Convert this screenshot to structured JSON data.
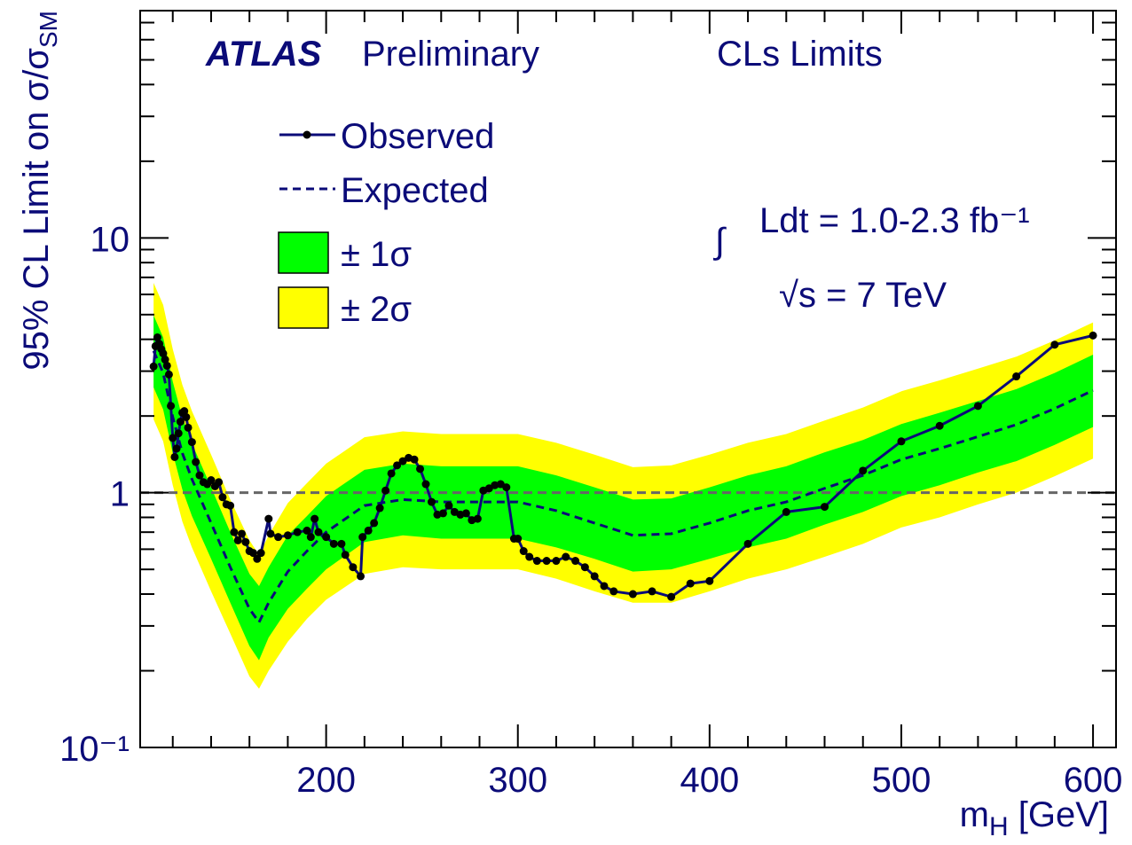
{
  "chart_data": {
    "type": "line",
    "atlas_label": "ATLAS",
    "status": "Preliminary",
    "method": "CLs Limits",
    "integral_sign": "∫",
    "luminosity": "Ldt = 1.0-2.3 fb⁻¹",
    "energy": "√s = 7 TeV",
    "x_label": [
      "m",
      "H",
      " [GeV]"
    ],
    "y_label": [
      "95% CL Limit on σ/σ",
      "SM"
    ],
    "xlim": [
      103,
      612
    ],
    "xticks": [
      200,
      300,
      400,
      500,
      600
    ],
    "xminorticks": [
      120,
      140,
      160,
      180,
      220,
      240,
      260,
      280,
      320,
      340,
      360,
      380,
      420,
      440,
      460,
      480,
      520,
      540,
      560,
      580
    ],
    "ylim": [
      0.1,
      78
    ],
    "yscale": "log",
    "yticks": [
      {
        "value": 0.1,
        "label": "10⁻¹"
      },
      1,
      10
    ],
    "yminorticks": [
      0.2,
      0.3,
      0.4,
      0.5,
      0.6,
      0.7,
      0.8,
      0.9,
      2,
      3,
      4,
      5,
      6,
      7,
      8,
      9,
      20,
      30,
      40,
      50,
      60,
      70
    ],
    "reference_line": {
      "value": 1,
      "color": "#666666"
    },
    "series": [
      {
        "name": "Observed",
        "color": "#0b0b78",
        "marker_color": "#000000",
        "style": "solid",
        "x": [
          110,
          111,
          112,
          113,
          114,
          115,
          116,
          117,
          118,
          119,
          120,
          121,
          122,
          123,
          124,
          125,
          126,
          127,
          128,
          130,
          132,
          134,
          136,
          138,
          140,
          142,
          144,
          146,
          148,
          150,
          152,
          154,
          156,
          158,
          160,
          162,
          164,
          166,
          170,
          171,
          175,
          180,
          185,
          190,
          192,
          194,
          196,
          200,
          204,
          208,
          210,
          214,
          218,
          219,
          222,
          225,
          228,
          231,
          234,
          237,
          240,
          243,
          246,
          249,
          252,
          255,
          258,
          261,
          264,
          267,
          270,
          273,
          276,
          279,
          282,
          285,
          288,
          291,
          294,
          298,
          300,
          303,
          306,
          310,
          315,
          320,
          325,
          330,
          335,
          340,
          345,
          350,
          360,
          370,
          380,
          390,
          400,
          420,
          440,
          460,
          480,
          500,
          520,
          540,
          560,
          580,
          600
        ],
        "values": [
          3.13,
          3.76,
          4.07,
          3.84,
          3.66,
          3.52,
          3.33,
          3.15,
          2.91,
          2.19,
          1.64,
          1.38,
          1.49,
          1.71,
          1.9,
          2.06,
          2.09,
          1.98,
          1.8,
          1.58,
          1.32,
          1.17,
          1.1,
          1.08,
          1.12,
          1.06,
          1.1,
          0.96,
          0.9,
          0.89,
          0.7,
          0.65,
          0.69,
          0.64,
          0.59,
          0.58,
          0.55,
          0.58,
          0.79,
          0.69,
          0.67,
          0.68,
          0.7,
          0.71,
          0.67,
          0.79,
          0.7,
          0.67,
          0.63,
          0.63,
          0.57,
          0.51,
          0.47,
          0.67,
          0.71,
          0.76,
          0.87,
          1.02,
          1.19,
          1.28,
          1.33,
          1.37,
          1.35,
          1.24,
          1.08,
          0.92,
          0.82,
          0.83,
          0.89,
          0.84,
          0.82,
          0.83,
          0.78,
          0.79,
          1.02,
          1.04,
          1.07,
          1.08,
          1.05,
          0.66,
          0.66,
          0.59,
          0.56,
          0.54,
          0.54,
          0.54,
          0.56,
          0.54,
          0.51,
          0.47,
          0.43,
          0.41,
          0.4,
          0.41,
          0.39,
          0.44,
          0.45,
          0.63,
          0.84,
          0.88,
          1.22,
          1.59,
          1.83,
          2.19,
          2.86,
          3.81,
          4.14
        ]
      },
      {
        "name": "Expected",
        "color": "#0b0b78",
        "style": "dashed",
        "x": [
          110,
          115,
          120,
          125,
          130,
          140,
          150,
          160,
          165,
          170,
          180,
          190,
          200,
          220,
          240,
          260,
          280,
          300,
          320,
          340,
          360,
          380,
          400,
          420,
          440,
          460,
          480,
          500,
          520,
          540,
          560,
          580,
          600
        ],
        "values": [
          3.6,
          2.95,
          1.98,
          1.43,
          1.13,
          0.76,
          0.51,
          0.35,
          0.31,
          0.37,
          0.49,
          0.59,
          0.7,
          0.89,
          0.94,
          0.92,
          0.92,
          0.92,
          0.85,
          0.76,
          0.68,
          0.69,
          0.76,
          0.85,
          0.92,
          1.04,
          1.17,
          1.35,
          1.49,
          1.66,
          1.85,
          2.14,
          2.52
        ]
      },
      {
        "name": "± 1σ",
        "color": "#00ff00",
        "style": "band",
        "x": [
          110,
          115,
          120,
          125,
          130,
          140,
          150,
          160,
          165,
          170,
          180,
          190,
          200,
          220,
          240,
          260,
          280,
          300,
          320,
          340,
          360,
          380,
          400,
          420,
          440,
          460,
          480,
          500,
          520,
          540,
          560,
          580,
          600
        ],
        "upper": [
          4.97,
          4.07,
          2.73,
          1.97,
          1.56,
          1.05,
          0.7,
          0.48,
          0.43,
          0.51,
          0.68,
          0.81,
          0.97,
          1.23,
          1.3,
          1.27,
          1.27,
          1.27,
          1.17,
          1.05,
          0.94,
          0.95,
          1.05,
          1.17,
          1.27,
          1.44,
          1.61,
          1.86,
          2.06,
          2.29,
          2.55,
          2.95,
          3.48
        ],
        "lower": [
          2.59,
          2.12,
          1.43,
          1.03,
          0.81,
          0.55,
          0.37,
          0.25,
          0.22,
          0.27,
          0.35,
          0.42,
          0.5,
          0.64,
          0.68,
          0.66,
          0.66,
          0.66,
          0.61,
          0.55,
          0.49,
          0.5,
          0.55,
          0.61,
          0.66,
          0.75,
          0.84,
          0.97,
          1.07,
          1.2,
          1.33,
          1.54,
          1.81
        ]
      },
      {
        "name": "± 2σ",
        "color": "#ffff00",
        "style": "band",
        "x": [
          110,
          115,
          120,
          125,
          130,
          140,
          150,
          160,
          165,
          170,
          180,
          190,
          200,
          220,
          240,
          260,
          280,
          300,
          320,
          340,
          360,
          380,
          400,
          420,
          440,
          460,
          480,
          500,
          520,
          540,
          560,
          580,
          600
        ],
        "upper": [
          6.66,
          5.46,
          3.66,
          2.65,
          2.09,
          1.41,
          0.94,
          0.65,
          0.57,
          0.68,
          0.91,
          1.09,
          1.3,
          1.65,
          1.74,
          1.7,
          1.7,
          1.7,
          1.57,
          1.41,
          1.26,
          1.28,
          1.41,
          1.57,
          1.7,
          1.92,
          2.16,
          2.5,
          2.76,
          3.07,
          3.42,
          3.96,
          4.66
        ],
        "lower": [
          1.94,
          1.59,
          1.07,
          0.77,
          0.61,
          0.41,
          0.28,
          0.19,
          0.17,
          0.2,
          0.26,
          0.32,
          0.38,
          0.48,
          0.51,
          0.5,
          0.5,
          0.5,
          0.46,
          0.41,
          0.37,
          0.37,
          0.41,
          0.46,
          0.5,
          0.56,
          0.63,
          0.73,
          0.8,
          0.9,
          1.0,
          1.16,
          1.36
        ]
      }
    ]
  }
}
